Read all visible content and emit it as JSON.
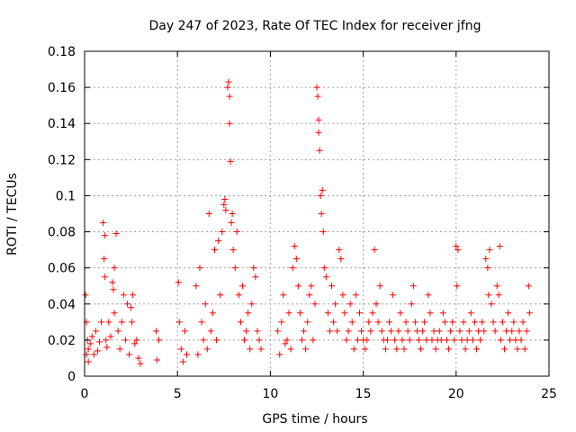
{
  "chart_data": {
    "type": "scatter",
    "title": "Day 247 of 2023, Rate Of TEC Index for receiver jfng",
    "xlabel": "GPS time / hours",
    "ylabel": "ROTI / TECUs",
    "xlim": [
      0,
      25
    ],
    "ylim": [
      0,
      0.18
    ],
    "xticks": [
      0,
      5,
      10,
      15,
      20,
      25
    ],
    "yticks": [
      0,
      0.02,
      0.04,
      0.06,
      0.08,
      0.1,
      0.12,
      0.14,
      0.16,
      0.18
    ],
    "xtick_labels": [
      "0",
      "5",
      "10",
      "15",
      "20",
      "25"
    ],
    "ytick_labels": [
      "0",
      "0.02",
      "0.04",
      "0.06",
      "0.08",
      "0.1",
      "0.12",
      "0.14",
      "0.16",
      "0.18"
    ],
    "grid": true,
    "marker": "+",
    "color": "#ff0000",
    "series": [
      {
        "x": [
          0.05,
          0.1,
          0.1,
          0.15,
          0.2,
          0.2,
          0.3,
          0.4,
          0.5,
          0.6,
          0.7,
          0.8,
          0.9,
          1.0,
          1.05,
          1.1,
          1.1,
          1.15,
          1.2,
          1.3,
          1.4,
          1.5,
          1.55,
          1.6,
          1.6,
          1.7,
          1.8,
          1.9,
          2.0,
          2.1,
          2.2,
          2.3,
          2.4,
          2.5,
          2.55,
          2.6,
          2.7,
          2.8,
          2.9,
          3.0,
          3.85,
          3.9,
          4.0,
          5.05,
          5.1,
          5.2,
          5.3,
          5.4,
          5.5,
          6.0,
          6.1,
          6.2,
          6.3,
          6.4,
          6.5,
          6.6,
          6.7,
          6.8,
          6.9,
          7.0,
          7.1,
          7.2,
          7.3,
          7.4,
          7.5,
          7.55,
          7.6,
          7.7,
          7.75,
          7.8,
          7.8,
          7.85,
          7.9,
          7.95,
          8.0,
          8.1,
          8.2,
          8.3,
          8.4,
          8.5,
          8.6,
          8.7,
          8.8,
          8.9,
          9.0,
          9.1,
          9.2,
          9.3,
          9.4,
          9.5,
          10.4,
          10.5,
          10.6,
          10.7,
          10.8,
          10.9,
          11.0,
          11.1,
          11.2,
          11.3,
          11.4,
          11.5,
          11.6,
          11.7,
          11.8,
          11.9,
          12.0,
          12.1,
          12.2,
          12.3,
          12.4,
          12.5,
          12.55,
          12.6,
          12.6,
          12.65,
          12.7,
          12.75,
          12.8,
          12.85,
          12.9,
          13.0,
          13.1,
          13.2,
          13.3,
          13.4,
          13.5,
          13.6,
          13.7,
          13.8,
          13.9,
          14.0,
          14.1,
          14.2,
          14.3,
          14.4,
          14.5,
          14.6,
          14.7,
          14.8,
          14.9,
          15.0,
          15.1,
          15.2,
          15.3,
          15.4,
          15.5,
          15.6,
          15.7,
          15.8,
          15.9,
          16.0,
          16.1,
          16.2,
          16.3,
          16.4,
          16.5,
          16.6,
          16.7,
          16.8,
          16.9,
          17.0,
          17.1,
          17.2,
          17.3,
          17.4,
          17.5,
          17.6,
          17.7,
          17.8,
          17.9,
          18.0,
          18.1,
          18.2,
          18.3,
          18.4,
          18.5,
          18.6,
          18.7,
          18.8,
          18.9,
          19.0,
          19.1,
          19.2,
          19.3,
          19.4,
          19.5,
          19.6,
          19.7,
          19.8,
          19.9,
          20.0,
          20.05,
          20.1,
          20.2,
          20.3,
          20.4,
          20.5,
          20.6,
          20.7,
          20.8,
          20.9,
          21.0,
          21.1,
          21.2,
          21.3,
          21.4,
          21.5,
          21.6,
          21.7,
          21.75,
          21.8,
          21.9,
          22.0,
          22.1,
          22.2,
          22.3,
          22.35,
          22.4,
          22.5,
          22.6,
          22.7,
          22.8,
          22.9,
          23.0,
          23.1,
          23.2,
          23.3,
          23.4,
          23.5,
          23.6,
          23.7,
          23.8,
          23.9,
          23.95
        ],
        "y": [
          0.045,
          0.03,
          0.012,
          0.02,
          0.015,
          0.008,
          0.018,
          0.022,
          0.012,
          0.025,
          0.014,
          0.019,
          0.03,
          0.085,
          0.065,
          0.078,
          0.055,
          0.02,
          0.016,
          0.03,
          0.022,
          0.052,
          0.048,
          0.06,
          0.035,
          0.079,
          0.025,
          0.015,
          0.03,
          0.045,
          0.02,
          0.04,
          0.012,
          0.038,
          0.03,
          0.045,
          0.018,
          0.02,
          0.01,
          0.007,
          0.025,
          0.009,
          0.02,
          0.052,
          0.03,
          0.015,
          0.008,
          0.025,
          0.012,
          0.05,
          0.012,
          0.06,
          0.03,
          0.02,
          0.04,
          0.015,
          0.09,
          0.025,
          0.035,
          0.07,
          0.02,
          0.075,
          0.045,
          0.08,
          0.095,
          0.098,
          0.092,
          0.16,
          0.163,
          0.155,
          0.14,
          0.119,
          0.085,
          0.09,
          0.07,
          0.06,
          0.08,
          0.045,
          0.03,
          0.05,
          0.02,
          0.025,
          0.035,
          0.015,
          0.04,
          0.06,
          0.055,
          0.025,
          0.02,
          0.015,
          0.025,
          0.012,
          0.03,
          0.045,
          0.018,
          0.02,
          0.035,
          0.015,
          0.06,
          0.072,
          0.065,
          0.05,
          0.035,
          0.02,
          0.025,
          0.015,
          0.03,
          0.045,
          0.05,
          0.02,
          0.04,
          0.16,
          0.155,
          0.142,
          0.135,
          0.125,
          0.1,
          0.09,
          0.103,
          0.08,
          0.06,
          0.055,
          0.035,
          0.025,
          0.05,
          0.03,
          0.04,
          0.025,
          0.07,
          0.065,
          0.045,
          0.035,
          0.02,
          0.025,
          0.04,
          0.03,
          0.015,
          0.045,
          0.02,
          0.035,
          0.025,
          0.02,
          0.015,
          0.02,
          0.03,
          0.025,
          0.035,
          0.07,
          0.04,
          0.03,
          0.05,
          0.025,
          0.02,
          0.015,
          0.02,
          0.03,
          0.025,
          0.045,
          0.02,
          0.015,
          0.025,
          0.035,
          0.02,
          0.015,
          0.03,
          0.025,
          0.02,
          0.04,
          0.05,
          0.03,
          0.025,
          0.02,
          0.015,
          0.025,
          0.03,
          0.02,
          0.045,
          0.035,
          0.02,
          0.025,
          0.015,
          0.02,
          0.025,
          0.02,
          0.035,
          0.03,
          0.02,
          0.015,
          0.025,
          0.03,
          0.02,
          0.072,
          0.05,
          0.07,
          0.025,
          0.02,
          0.03,
          0.015,
          0.02,
          0.025,
          0.035,
          0.02,
          0.03,
          0.015,
          0.025,
          0.02,
          0.03,
          0.025,
          0.065,
          0.06,
          0.045,
          0.07,
          0.04,
          0.03,
          0.025,
          0.05,
          0.045,
          0.072,
          0.02,
          0.03,
          0.015,
          0.025,
          0.035,
          0.02,
          0.025,
          0.03,
          0.02,
          0.015,
          0.025,
          0.02,
          0.03,
          0.015,
          0.025,
          0.05,
          0.035
        ]
      }
    ]
  }
}
